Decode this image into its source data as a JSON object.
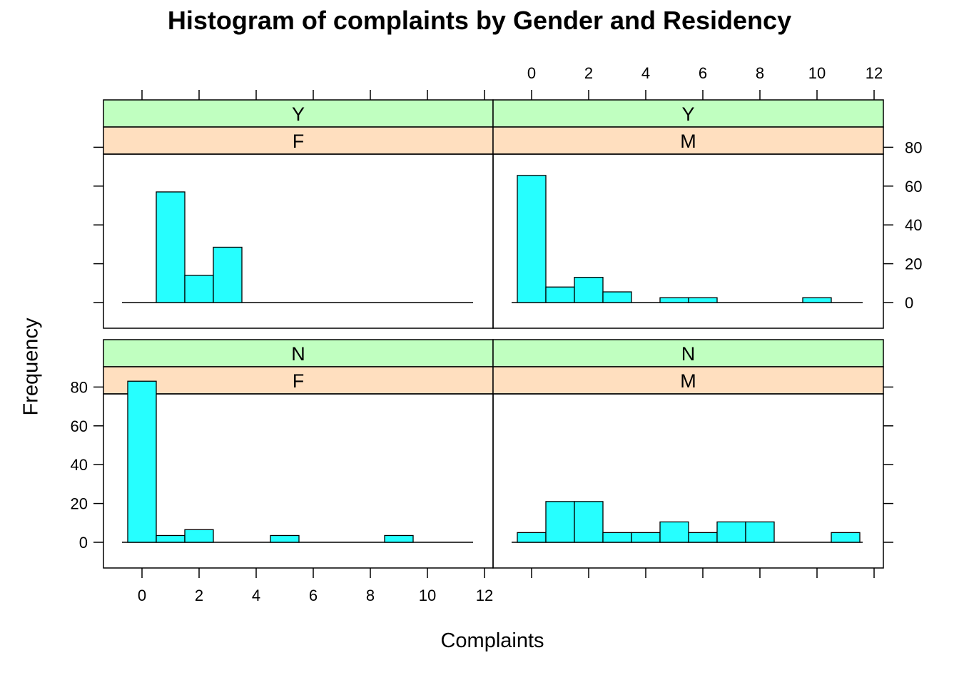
{
  "chart_data": {
    "type": "bar",
    "title": "Histogram of complaints by Gender and Residency",
    "xlabel": "Complaints",
    "ylabel": "Frequency",
    "xlim": [
      -0.5,
      11.5
    ],
    "ylim": [
      0,
      88
    ],
    "x_ticks": [
      0,
      2,
      4,
      6,
      8,
      10,
      12
    ],
    "y_ticks": [
      0,
      20,
      40,
      60,
      80
    ],
    "bin_width": 1,
    "strip_colors": {
      "outer": "#c0ffc0",
      "inner": "#ffdfbf"
    },
    "bar_color": "#26ffff",
    "panels": [
      {
        "strip_top": "Y",
        "strip_bottom": "F",
        "bins": [
          {
            "x0": 0.5,
            "x1": 1.5,
            "y": 57
          },
          {
            "x0": 1.5,
            "x1": 2.5,
            "y": 14
          },
          {
            "x0": 2.5,
            "x1": 3.5,
            "y": 28.5
          }
        ]
      },
      {
        "strip_top": "Y",
        "strip_bottom": "M",
        "bins": [
          {
            "x0": -0.5,
            "x1": 0.5,
            "y": 65.5
          },
          {
            "x0": 0.5,
            "x1": 1.5,
            "y": 8
          },
          {
            "x0": 1.5,
            "x1": 2.5,
            "y": 13
          },
          {
            "x0": 2.5,
            "x1": 3.5,
            "y": 5.5
          },
          {
            "x0": 4.5,
            "x1": 5.5,
            "y": 2.5
          },
          {
            "x0": 5.5,
            "x1": 6.5,
            "y": 2.5
          },
          {
            "x0": 9.5,
            "x1": 10.5,
            "y": 2.5
          }
        ]
      },
      {
        "strip_top": "N",
        "strip_bottom": "F",
        "bins": [
          {
            "x0": -0.5,
            "x1": 0.5,
            "y": 83
          },
          {
            "x0": 0.5,
            "x1": 1.5,
            "y": 3.5
          },
          {
            "x0": 1.5,
            "x1": 2.5,
            "y": 6.5
          },
          {
            "x0": 4.5,
            "x1": 5.5,
            "y": 3.5
          },
          {
            "x0": 8.5,
            "x1": 9.5,
            "y": 3.5
          }
        ]
      },
      {
        "strip_top": "N",
        "strip_bottom": "M",
        "bins": [
          {
            "x0": -0.5,
            "x1": 0.5,
            "y": 5
          },
          {
            "x0": 0.5,
            "x1": 1.5,
            "y": 21
          },
          {
            "x0": 1.5,
            "x1": 2.5,
            "y": 21
          },
          {
            "x0": 2.5,
            "x1": 3.5,
            "y": 5
          },
          {
            "x0": 3.5,
            "x1": 4.5,
            "y": 5
          },
          {
            "x0": 4.5,
            "x1": 5.5,
            "y": 10.5
          },
          {
            "x0": 5.5,
            "x1": 6.5,
            "y": 5
          },
          {
            "x0": 6.5,
            "x1": 7.5,
            "y": 10.5
          },
          {
            "x0": 7.5,
            "x1": 8.5,
            "y": 10.5
          },
          {
            "x0": 10.5,
            "x1": 11.5,
            "y": 5
          }
        ]
      }
    ]
  }
}
